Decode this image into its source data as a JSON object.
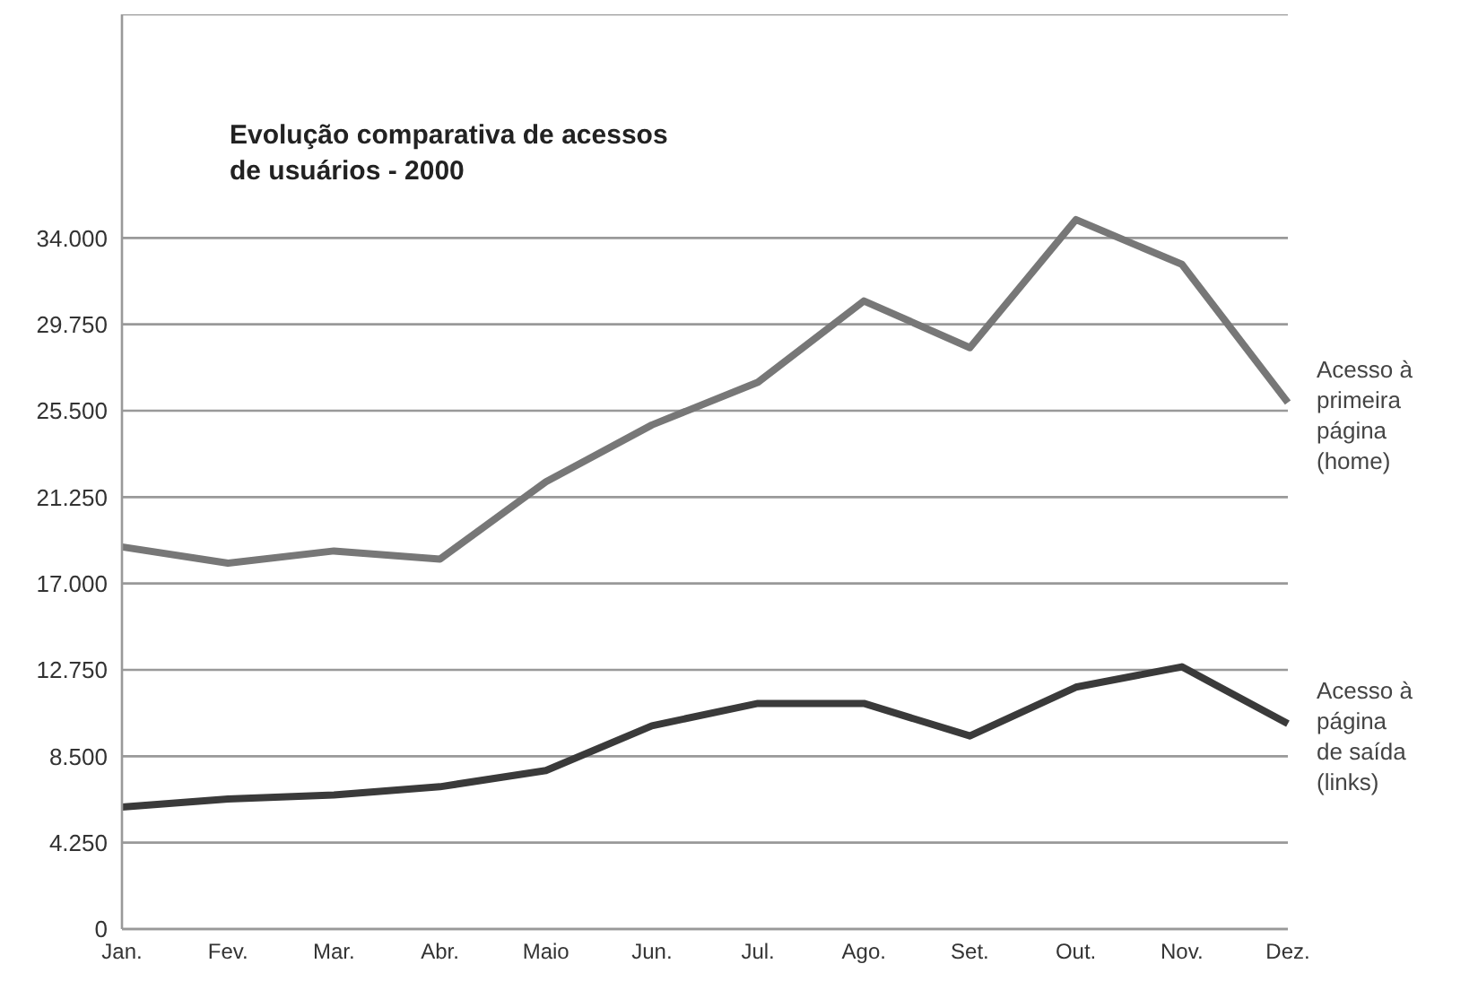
{
  "chart_data": {
    "type": "line",
    "title": "Evolução comparativa de acessos de usuários - 2000",
    "categories": [
      "Jan.",
      "Fev.",
      "Mar.",
      "Abr.",
      "Maio",
      "Jun.",
      "Jul.",
      "Ago.",
      "Set.",
      "Out.",
      "Nov.",
      "Dez."
    ],
    "series": [
      {
        "name": "Acesso à primeira página (home)",
        "color": "#777777",
        "values": [
          18800,
          18000,
          18600,
          18200,
          22000,
          24800,
          26900,
          30900,
          28600,
          34900,
          32700,
          25900
        ]
      },
      {
        "name": "Acesso à página de saída (links)",
        "color": "#3a3a3a",
        "values": [
          6000,
          6400,
          6600,
          7000,
          7800,
          10000,
          11100,
          11100,
          9500,
          11900,
          12900,
          10100
        ]
      }
    ],
    "ylim": [
      0,
      45000
    ],
    "yticks": [
      0,
      {
        "value": 4250,
        "label": "4.250"
      },
      {
        "value": 8500,
        "label": "8.500"
      },
      {
        "value": 12750,
        "label": "12.750"
      },
      {
        "value": 17000,
        "label": "17.000"
      },
      {
        "value": 21250,
        "label": "21.250"
      },
      {
        "value": 25500,
        "label": "25.500"
      },
      {
        "value": 29750,
        "label": "29.750"
      },
      {
        "value": 34000,
        "label": "34.000"
      }
    ],
    "grid": "y",
    "marker": "none",
    "line_style": "solid"
  }
}
